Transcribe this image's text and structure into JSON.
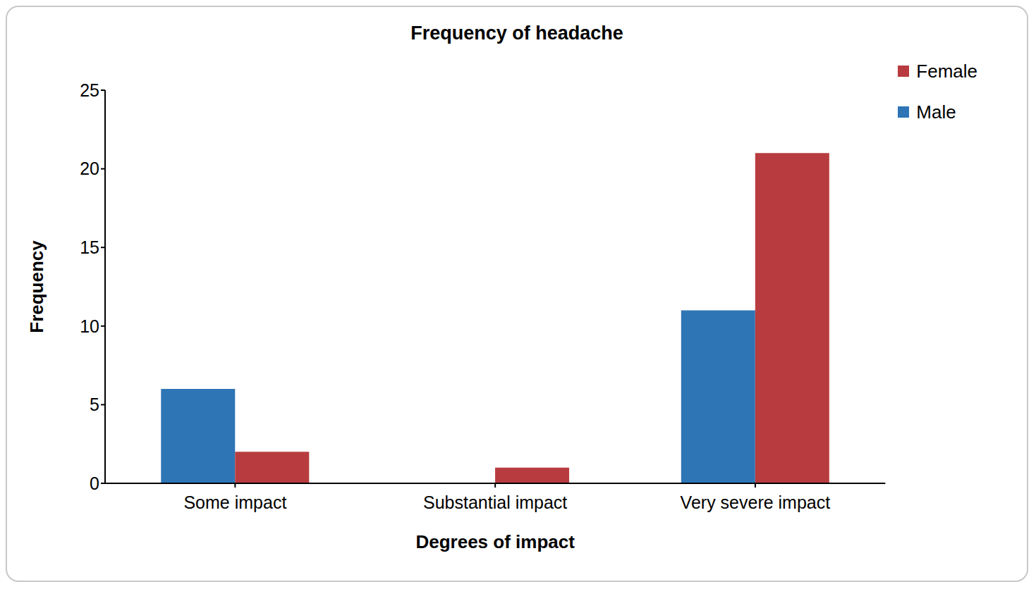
{
  "chart_data": {
    "type": "bar",
    "title": "Frequency of headache",
    "x_label": "Degrees of impact",
    "y_label": "Frequency",
    "categories": [
      "Some impact",
      "Substantial impact",
      "Very severe impact"
    ],
    "series": [
      {
        "name": "Male",
        "color": "#2e75b6",
        "values": [
          6,
          0,
          11
        ]
      },
      {
        "name": "Female",
        "color": "#b83c3f",
        "values": [
          2,
          1,
          21
        ]
      }
    ],
    "ylim": [
      0,
      25
    ],
    "yticks": [
      0,
      5,
      10,
      15,
      20,
      25
    ],
    "grid": false,
    "legend": "upper right"
  }
}
